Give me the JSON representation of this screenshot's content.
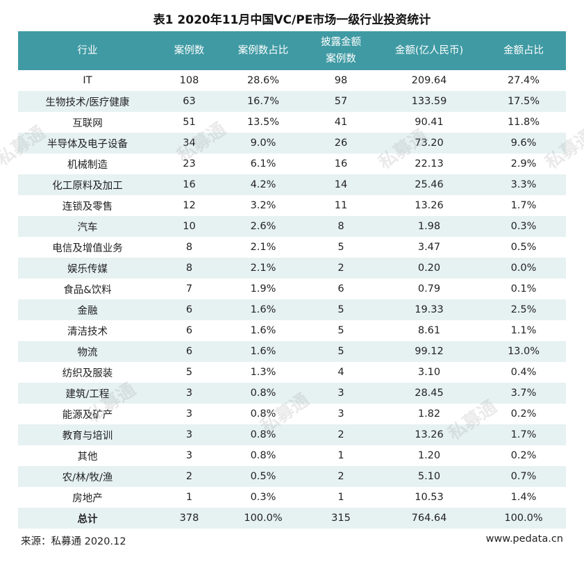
{
  "title": "表1  2020年11月中国VC/PE市场一级行业投资统计",
  "headers": [
    "行业",
    "案例数",
    "案例数占比",
    "披露金额案例数",
    "金额(亿人民币)",
    "金额占比"
  ],
  "rows": [
    [
      "IT",
      "108",
      "28.6%",
      "98",
      "209.64",
      "27.4%"
    ],
    [
      "生物技术/医疗健康",
      "63",
      "16.7%",
      "57",
      "133.59",
      "17.5%"
    ],
    [
      "互联网",
      "51",
      "13.5%",
      "41",
      "90.41",
      "11.8%"
    ],
    [
      "半导体及电子设备",
      "34",
      "9.0%",
      "26",
      "73.20",
      "9.6%"
    ],
    [
      "机械制造",
      "23",
      "6.1%",
      "16",
      "22.13",
      "2.9%"
    ],
    [
      "化工原料及加工",
      "16",
      "4.2%",
      "14",
      "25.46",
      "3.3%"
    ],
    [
      "连锁及零售",
      "12",
      "3.2%",
      "11",
      "13.26",
      "1.7%"
    ],
    [
      "汽车",
      "10",
      "2.6%",
      "8",
      "1.98",
      "0.3%"
    ],
    [
      "电信及增值业务",
      "8",
      "2.1%",
      "5",
      "3.47",
      "0.5%"
    ],
    [
      "娱乐传媒",
      "8",
      "2.1%",
      "2",
      "0.20",
      "0.0%"
    ],
    [
      "食品&饮料",
      "7",
      "1.9%",
      "6",
      "0.79",
      "0.1%"
    ],
    [
      "金融",
      "6",
      "1.6%",
      "5",
      "19.33",
      "2.5%"
    ],
    [
      "清洁技术",
      "6",
      "1.6%",
      "5",
      "8.61",
      "1.1%"
    ],
    [
      "物流",
      "6",
      "1.6%",
      "5",
      "99.12",
      "13.0%"
    ],
    [
      "纺织及服装",
      "5",
      "1.3%",
      "4",
      "3.10",
      "0.4%"
    ],
    [
      "建筑/工程",
      "3",
      "0.8%",
      "3",
      "28.45",
      "3.7%"
    ],
    [
      "能源及矿产",
      "3",
      "0.8%",
      "3",
      "1.82",
      "0.2%"
    ],
    [
      "教育与培训",
      "3",
      "0.8%",
      "2",
      "13.26",
      "1.7%"
    ],
    [
      "其他",
      "3",
      "0.8%",
      "1",
      "1.20",
      "0.2%"
    ],
    [
      "农/林/牧/渔",
      "2",
      "0.5%",
      "2",
      "5.10",
      "0.7%"
    ],
    [
      "房地产",
      "1",
      "0.3%",
      "1",
      "10.53",
      "1.4%"
    ],
    [
      "总计",
      "378",
      "100.0%",
      "315",
      "764.64",
      "100.0%"
    ]
  ],
  "source": "来源：私募通 2020.12",
  "site": "www.pedata.cn",
  "watermark": "私募通",
  "colors": {
    "header_bg": "#3f9aa3",
    "stripe_bg": "#e6f1f2"
  }
}
